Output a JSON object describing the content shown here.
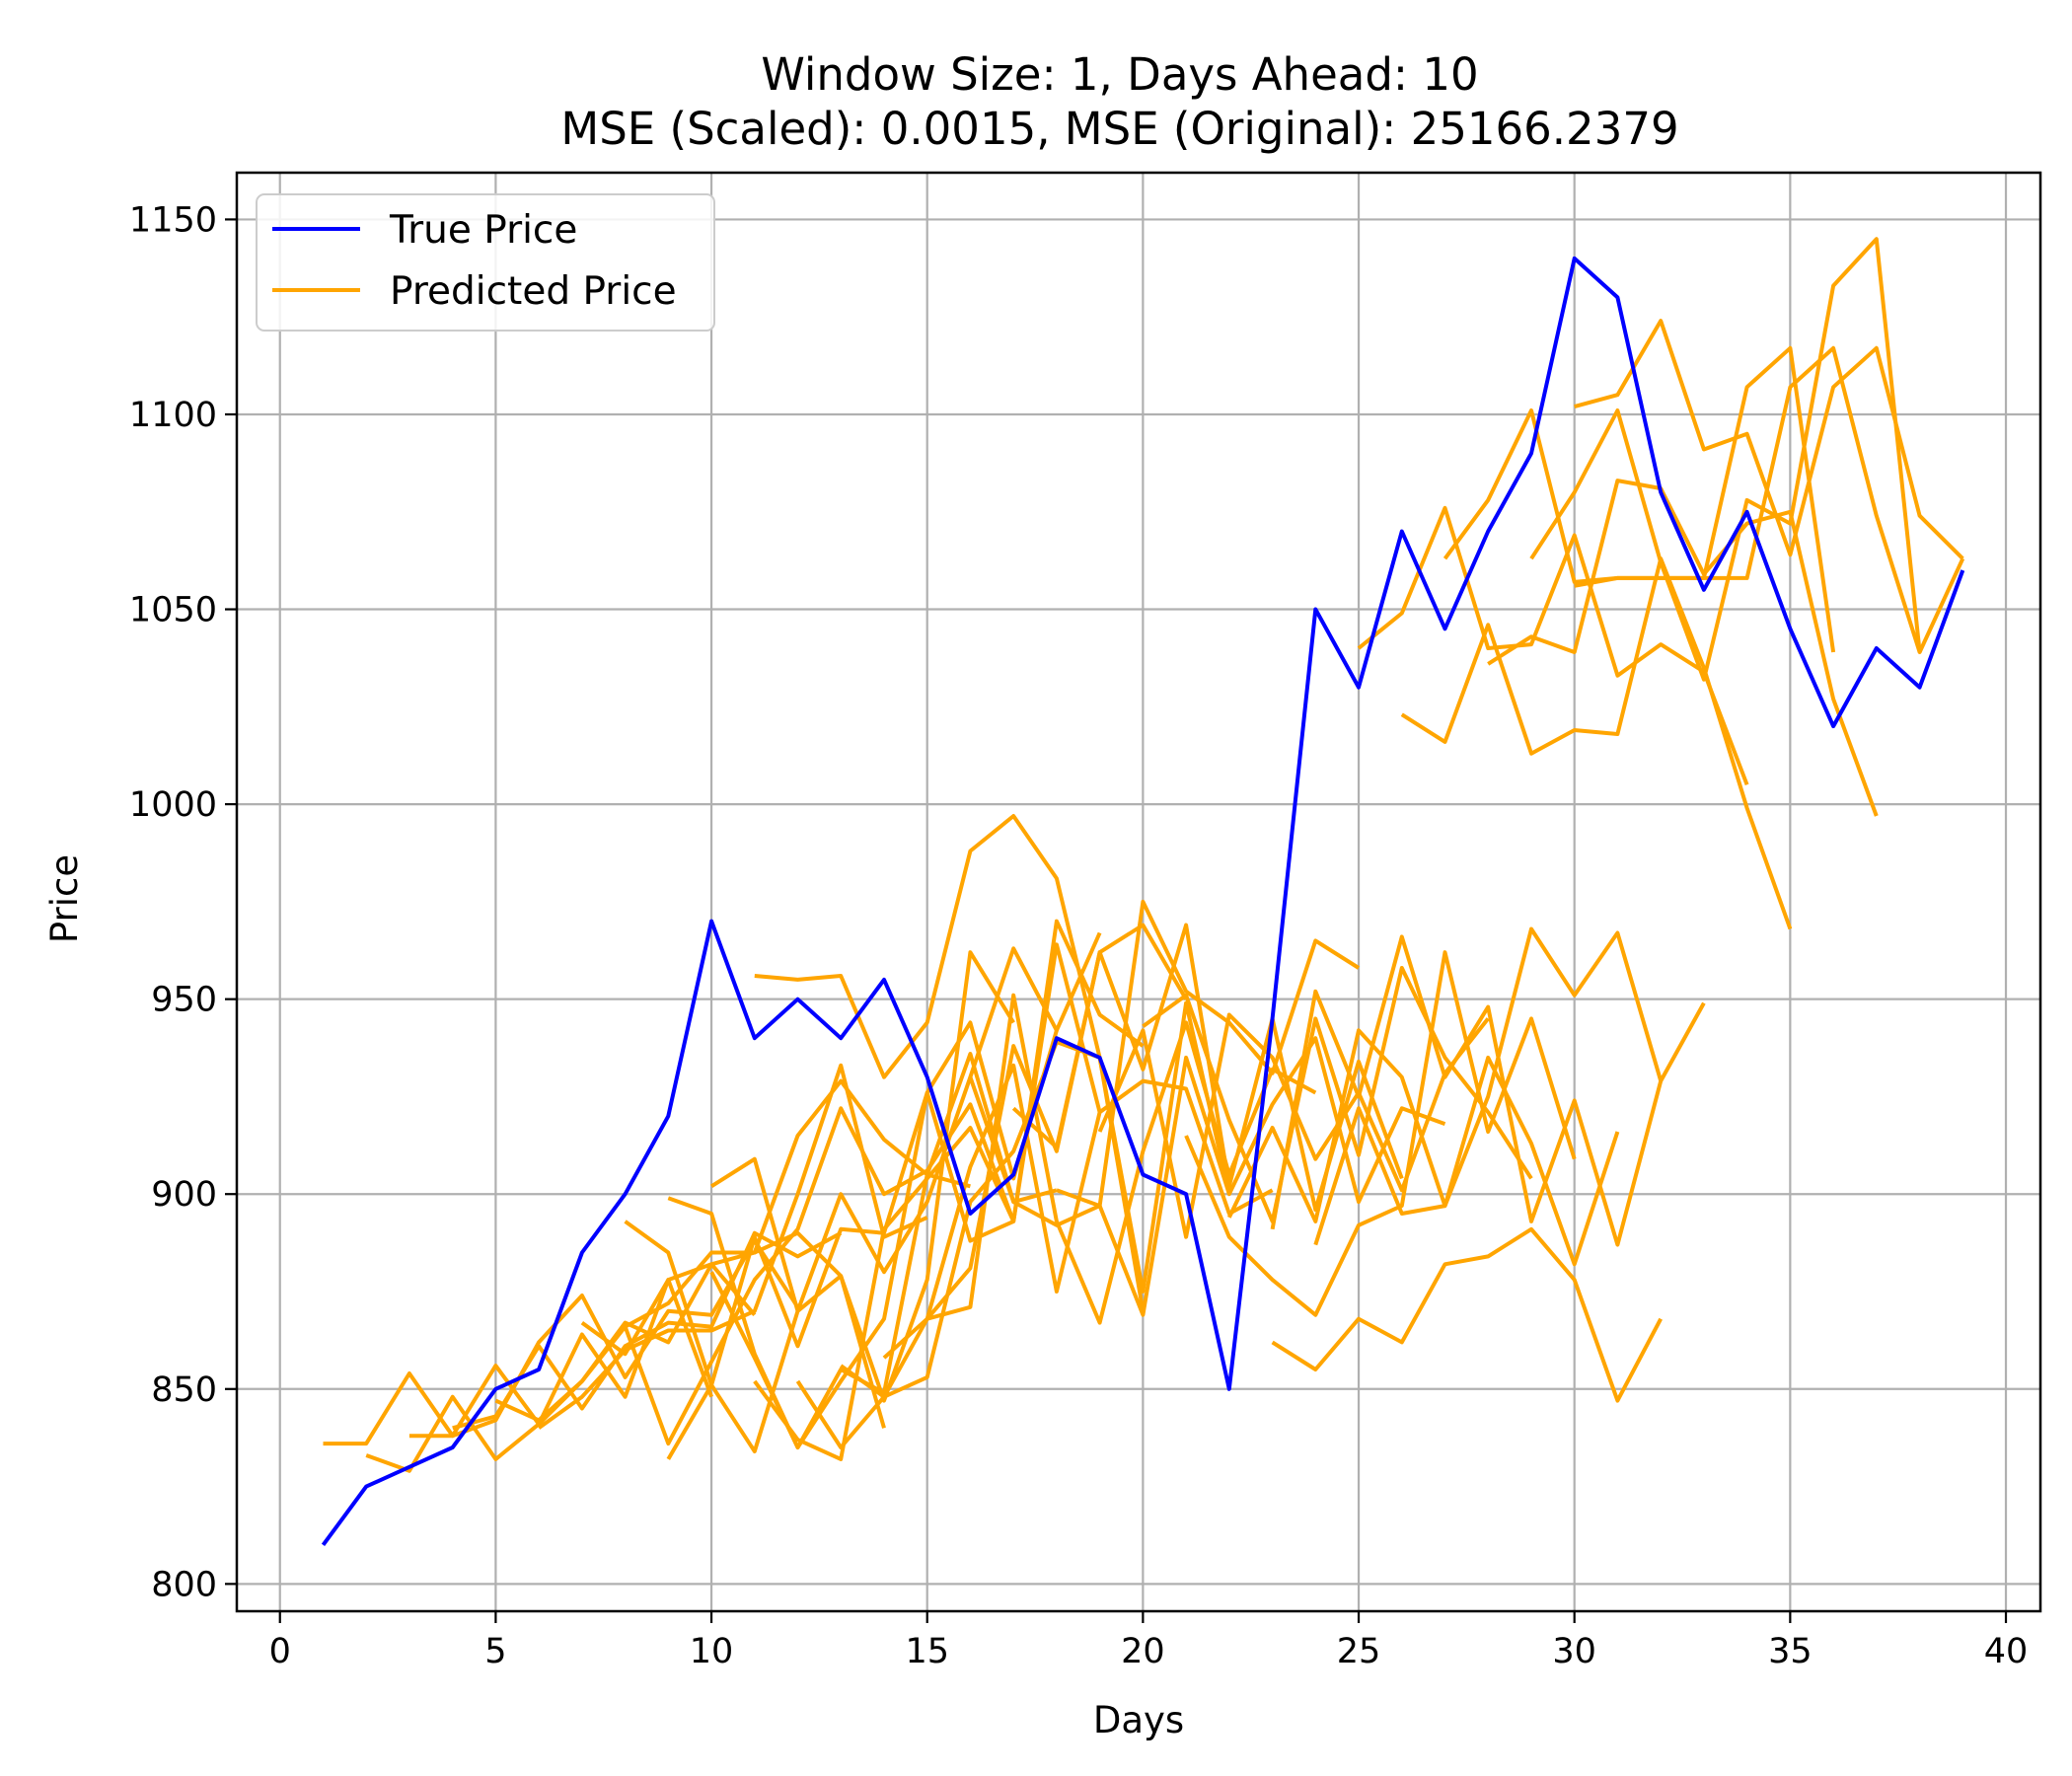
{
  "chart_data": {
    "type": "line",
    "title": "Window Size: 1, Days Ahead: 10",
    "subtitle": "MSE (Scaled): 0.0015, MSE (Original): 25166.2379",
    "xlabel": "Days",
    "ylabel": "Price",
    "xlim": [
      -1,
      40.8
    ],
    "ylim": [
      793,
      1162
    ],
    "xticks": [
      0,
      5,
      10,
      15,
      20,
      25,
      30,
      35,
      40
    ],
    "yticks": [
      800,
      850,
      900,
      950,
      1000,
      1050,
      1100,
      1150
    ],
    "grid": true,
    "legend_position": "top-left",
    "colors": {
      "true": "#0000ff",
      "predicted": "#ffa500"
    },
    "legend": [
      {
        "label": "True Price",
        "color": "#0000ff"
      },
      {
        "label": "Predicted Price",
        "color": "#ffa500"
      }
    ],
    "true_price": {
      "x": [
        1,
        2,
        3,
        4,
        5,
        6,
        7,
        8,
        9,
        10,
        11,
        12,
        13,
        14,
        15,
        16,
        17,
        18,
        19,
        20,
        21,
        22,
        23,
        24,
        25,
        26,
        27,
        28,
        29,
        30,
        31,
        32,
        33,
        34,
        35,
        36,
        37,
        38,
        39
      ],
      "y": [
        810,
        825,
        830,
        835,
        850,
        855,
        885,
        900,
        920,
        970,
        940,
        950,
        940,
        955,
        930,
        895,
        905,
        940,
        935,
        905,
        900,
        850,
        945,
        1050,
        1030,
        1070,
        1045,
        1070,
        1090,
        1140,
        1130,
        1080,
        1055,
        1075,
        1045,
        1020,
        1040,
        1030,
        1060
      ]
    },
    "predicted_price": [
      {
        "x": [
          1,
          2,
          3,
          4,
          5,
          6,
          7,
          8,
          9,
          10
        ],
        "y": [
          836,
          836,
          854,
          838,
          856,
          841,
          864,
          848,
          878,
          848
        ]
      },
      {
        "x": [
          2,
          3,
          4,
          5,
          6,
          7,
          8,
          9,
          10,
          11
        ],
        "y": [
          833,
          829,
          848,
          832,
          841,
          852,
          867,
          862,
          882,
          869
        ]
      },
      {
        "x": [
          3,
          4,
          5,
          6,
          7,
          8,
          9,
          10,
          11,
          12
        ],
        "y": [
          838,
          838,
          842,
          862,
          874,
          853,
          870,
          869,
          888,
          871
        ]
      },
      {
        "x": [
          4,
          5,
          6,
          7,
          8,
          9,
          10,
          11,
          12,
          13
        ],
        "y": [
          840,
          843,
          861,
          845,
          861,
          867,
          866,
          890,
          884,
          890
        ]
      },
      {
        "x": [
          5,
          6,
          7,
          8,
          9,
          10,
          11,
          12,
          13,
          14
        ],
        "y": [
          847,
          842,
          852,
          866,
          872,
          885,
          885,
          890,
          879,
          840
        ]
      },
      {
        "x": [
          6,
          7,
          8,
          9,
          10,
          11,
          12,
          13,
          14,
          15
        ],
        "y": [
          840,
          848,
          860,
          865,
          865,
          870,
          900,
          933,
          889,
          894
        ]
      },
      {
        "x": [
          7,
          8,
          9,
          10,
          11,
          12,
          13,
          14,
          15,
          16
        ],
        "y": [
          867,
          859,
          878,
          882,
          885,
          915,
          929,
          914,
          905,
          902
        ]
      },
      {
        "x": [
          8,
          9,
          10,
          11,
          12,
          13,
          14,
          15,
          16,
          17
        ],
        "y": [
          866,
          836,
          857,
          878,
          891,
          922,
          900,
          906,
          923,
          893
        ]
      },
      {
        "x": [
          9,
          10,
          11,
          12,
          13,
          14,
          15,
          16,
          17,
          18
        ],
        "y": [
          832,
          851,
          889,
          861,
          891,
          890,
          926,
          944,
          904,
          942
        ]
      },
      {
        "x": [
          10,
          11,
          12,
          13,
          14,
          15,
          16,
          17,
          18,
          19
        ],
        "y": [
          880,
          858,
          835,
          852,
          868,
          926,
          888,
          893,
          964,
          921
        ]
      },
      {
        "x": [
          11,
          12,
          13,
          14,
          15,
          16,
          17,
          18,
          19,
          20
        ],
        "y": [
          852,
          837,
          832,
          891,
          904,
          917,
          893,
          970,
          946,
          938
        ]
      },
      {
        "x": [
          12,
          13,
          14,
          15,
          16,
          17,
          18,
          19,
          20,
          21
        ],
        "y": [
          852,
          835,
          848,
          868,
          881,
          938,
          911,
          962,
          969,
          950
        ]
      },
      {
        "x": [
          13,
          14,
          15,
          16,
          17,
          18,
          19,
          20,
          21,
          22
        ],
        "y": [
          856,
          848,
          853,
          898,
          911,
          939,
          935,
          875,
          949,
          900
        ]
      },
      {
        "x": [
          14,
          15,
          16,
          17,
          18,
          19,
          20,
          21,
          22,
          23
        ],
        "y": [
          858,
          868,
          907,
          933,
          875,
          921,
          929,
          927,
          895,
          901
        ]
      },
      {
        "x": [
          15,
          16,
          17,
          18,
          19,
          20,
          21,
          22,
          23,
          24
        ],
        "y": [
          868,
          871,
          951,
          893,
          867,
          911,
          944,
          905,
          932,
          926
        ]
      },
      {
        "x": [
          9,
          10,
          11,
          12,
          13,
          14,
          15,
          16,
          17,
          18
        ],
        "y": [
          899,
          895,
          859,
          835,
          855,
          849,
          905,
          936,
          898,
          901
        ]
      },
      {
        "x": [
          8,
          9,
          10,
          11,
          12,
          13,
          14,
          15,
          16,
          17
        ],
        "y": [
          893,
          885,
          851,
          834,
          870,
          879,
          847,
          878,
          962,
          944
        ]
      },
      {
        "x": [
          10,
          11,
          12,
          13,
          14,
          15,
          16,
          17,
          18,
          19
        ],
        "y": [
          902,
          909,
          870,
          900,
          880,
          898,
          930,
          963,
          942,
          967
        ]
      },
      {
        "x": [
          11,
          12,
          13,
          14,
          15,
          16,
          17,
          18,
          19,
          20
        ],
        "y": [
          956,
          955,
          956,
          930,
          944,
          988,
          997,
          981,
          935,
          870
        ]
      },
      {
        "x": [
          16,
          17,
          18,
          19,
          20,
          21,
          22,
          23,
          24,
          25
        ],
        "y": [
          930,
          898,
          892,
          897,
          975,
          952,
          944,
          931,
          965,
          958
        ]
      },
      {
        "x": [
          17,
          18,
          19,
          20,
          21,
          22,
          23,
          24,
          25,
          26
        ],
        "y": [
          922,
          912,
          962,
          932,
          969,
          902,
          945,
          896,
          934,
          904
        ]
      },
      {
        "x": [
          18,
          19,
          20,
          21,
          22,
          23,
          24,
          25,
          26,
          27
        ],
        "y": [
          901,
          897,
          869,
          935,
          900,
          923,
          940,
          898,
          922,
          918
        ]
      },
      {
        "x": [
          19,
          20,
          21,
          22,
          23,
          24,
          25,
          26,
          27,
          28
        ],
        "y": [
          916,
          942,
          889,
          946,
          935,
          909,
          926,
          901,
          931,
          945
        ]
      },
      {
        "x": [
          20,
          21,
          22,
          23,
          24,
          25,
          26,
          27,
          28,
          29
        ],
        "y": [
          943,
          951,
          919,
          893,
          945,
          910,
          958,
          935,
          921,
          904
        ]
      },
      {
        "x": [
          21,
          22,
          23,
          24,
          25,
          26,
          27,
          28,
          29,
          30
        ],
        "y": [
          915,
          889,
          878,
          869,
          892,
          897,
          962,
          916,
          945,
          909
        ]
      },
      {
        "x": [
          22,
          23,
          24,
          25,
          26,
          27,
          28,
          29,
          30,
          31
        ],
        "y": [
          894,
          917,
          893,
          942,
          930,
          897,
          935,
          913,
          882,
          916
        ]
      },
      {
        "x": [
          23,
          24,
          25,
          26,
          27,
          28,
          29,
          30,
          31,
          32
        ],
        "y": [
          891,
          952,
          925,
          966,
          930,
          948,
          893,
          924,
          887,
          929
        ]
      },
      {
        "x": [
          23,
          24,
          25,
          26,
          27,
          28,
          29,
          30,
          31,
          32
        ],
        "y": [
          862,
          855,
          868,
          862,
          882,
          884,
          891,
          878,
          847,
          868
        ]
      },
      {
        "x": [
          24,
          25,
          26,
          27,
          28,
          29,
          30,
          31,
          32,
          33
        ],
        "y": [
          887,
          922,
          895,
          897,
          925,
          968,
          951,
          967,
          929,
          949
        ]
      },
      {
        "x": [
          25,
          26,
          27,
          28,
          29,
          30,
          31,
          32,
          33,
          34
        ],
        "y": [
          1040,
          1049,
          1076,
          1040,
          1041,
          1069,
          1033,
          1041,
          1034,
          1005
        ]
      },
      {
        "x": [
          26,
          27,
          28,
          29,
          30,
          31,
          32,
          33,
          34,
          35
        ],
        "y": [
          1023,
          1016,
          1046,
          1013,
          1019,
          1018,
          1063,
          1035,
          999,
          968
        ]
      },
      {
        "x": [
          27,
          28,
          29,
          30,
          31,
          32,
          33,
          34,
          35,
          36
        ],
        "y": [
          1063,
          1078,
          1101,
          1057,
          1058,
          1058,
          1058,
          1107,
          1117,
          1039
        ]
      },
      {
        "x": [
          28,
          29,
          30,
          31,
          32,
          33,
          34,
          35,
          36,
          37
        ],
        "y": [
          1036,
          1043,
          1039,
          1083,
          1081,
          1059,
          1072,
          1075,
          1027,
          997
        ]
      },
      {
        "x": [
          29,
          30,
          31,
          32,
          33,
          34,
          35,
          36,
          37,
          38
        ],
        "y": [
          1063,
          1080,
          1101,
          1062,
          1032,
          1078,
          1072,
          1133,
          1145,
          1039
        ]
      },
      {
        "x": [
          30,
          31,
          32,
          33,
          34,
          35,
          36,
          37,
          38,
          39
        ],
        "y": [
          1102,
          1105,
          1124,
          1091,
          1095,
          1064,
          1107,
          1117,
          1074,
          1063
        ]
      },
      {
        "x": [
          30,
          31,
          32,
          33,
          34,
          35,
          36,
          37,
          38,
          39
        ],
        "y": [
          1056,
          1058,
          1058,
          1058,
          1058,
          1107,
          1117,
          1074,
          1039,
          1063
        ]
      }
    ]
  }
}
